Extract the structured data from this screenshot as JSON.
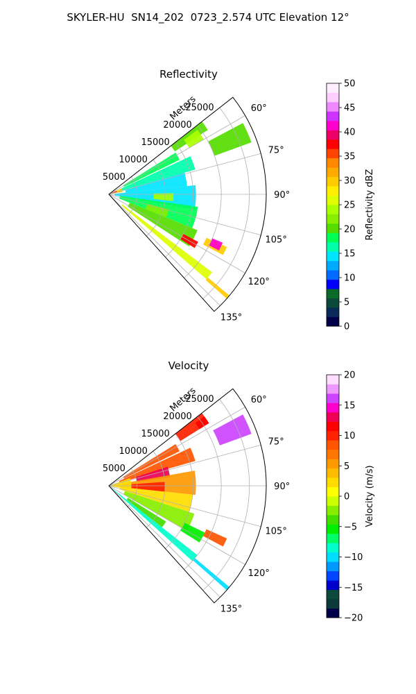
{
  "figure": {
    "suptitle": "SKYLER-HU  SN14_202  0723_2.574 UTC Elevation 12°"
  },
  "chart_data": [
    {
      "type": "heatmap",
      "projection": "polar",
      "title": "Reflectivity",
      "radial_axis_label": "Meters",
      "radial_ticks": [
        5000,
        10000,
        15000,
        20000,
        25000
      ],
      "radial_tick_labels": [
        "5000",
        "10000",
        "15000",
        "20000",
        "25000"
      ],
      "r_range": [
        0,
        28000
      ],
      "azimuth_range_deg": [
        52,
        138
      ],
      "azimuth_ticks": [
        60,
        75,
        90,
        105,
        120,
        135
      ],
      "azimuth_tick_labels": [
        "60°",
        "75°",
        "90°",
        "105°",
        "120°",
        "135°"
      ],
      "grid": true,
      "colorbar": {
        "label": "Reflectivity dBZ",
        "vmin": 0,
        "vmax": 50,
        "ticks": [
          0,
          5,
          10,
          15,
          20,
          25,
          30,
          35,
          40,
          45,
          50
        ],
        "tick_labels": [
          "0",
          "5",
          "10",
          "15",
          "20",
          "25",
          "30",
          "35",
          "40",
          "45",
          "50"
        ],
        "colormap": [
          "#00004a",
          "#0a2a5a",
          "#0b4a3a",
          "#0a6a2a",
          "#0000ff",
          "#006bff",
          "#00aaff",
          "#00e5ff",
          "#00ffaa",
          "#00ff55",
          "#55dd00",
          "#88ee00",
          "#aaff00",
          "#ddff00",
          "#ffee00",
          "#ffcc00",
          "#ffaa00",
          "#ff8800",
          "#ff4400",
          "#ff0000",
          "#ee0066",
          "#ff00cc",
          "#cc33ff",
          "#ee88ff",
          "#ffccff",
          "#ffeeff"
        ]
      },
      "echoes": [
        {
          "az": [
            52,
            57
          ],
          "r": [
            14000,
            21000
          ],
          "value": 20
        },
        {
          "az": [
            54,
            60
          ],
          "r": [
            16500,
            19500
          ],
          "value": 24
        },
        {
          "az": [
            58,
            64
          ],
          "r": [
            3000,
            14000
          ],
          "value": 18
        },
        {
          "az": [
            62,
            70
          ],
          "r": [
            20000,
            27000
          ],
          "value": 20
        },
        {
          "az": [
            65,
            74
          ],
          "r": [
            2000,
            16000
          ],
          "value": 16
        },
        {
          "az": [
            74,
            84
          ],
          "r": [
            3000,
            14000
          ],
          "value": 14
        },
        {
          "az": [
            84,
            100
          ],
          "r": [
            1000,
            15500
          ],
          "value": 15
        },
        {
          "az": [
            89,
            96
          ],
          "r": [
            8000,
            11500
          ],
          "value": 24
        },
        {
          "az": [
            98,
            112
          ],
          "r": [
            2000,
            16000
          ],
          "value": 18
        },
        {
          "az": [
            104,
            112
          ],
          "r": [
            7000,
            11000
          ],
          "value": 22
        },
        {
          "az": [
            112,
            123
          ],
          "r": [
            4000,
            17000
          ],
          "value": 20
        },
        {
          "az": [
            118,
            122
          ],
          "r": [
            15000,
            18000
          ],
          "value": 38
        },
        {
          "az": [
            114,
            118
          ],
          "r": [
            19000,
            23000
          ],
          "value": 30
        },
        {
          "az": [
            113,
            117
          ],
          "r": [
            20000,
            22000
          ],
          "value": 42
        },
        {
          "az": [
            127,
            131
          ],
          "r": [
            3000,
            23000
          ],
          "value": 26
        },
        {
          "az": [
            130,
            131.5
          ],
          "r": [
            23000,
            28000
          ],
          "value": 30
        },
        {
          "az": [
            65,
            80
          ],
          "r": [
            0,
            2500
          ],
          "value": 30
        },
        {
          "az": [
            66,
            72
          ],
          "r": [
            0,
            1500
          ],
          "value": 38
        }
      ]
    },
    {
      "type": "heatmap",
      "projection": "polar",
      "title": "Velocity",
      "radial_axis_label": "Meters",
      "radial_ticks": [
        5000,
        10000,
        15000,
        20000,
        25000
      ],
      "radial_tick_labels": [
        "5000",
        "10000",
        "15000",
        "20000",
        "25000"
      ],
      "r_range": [
        0,
        28000
      ],
      "azimuth_range_deg": [
        52,
        138
      ],
      "azimuth_ticks": [
        60,
        75,
        90,
        105,
        120,
        135
      ],
      "azimuth_tick_labels": [
        "60°",
        "75°",
        "90°",
        "105°",
        "120°",
        "135°"
      ],
      "grid": true,
      "colorbar": {
        "label": "Velocity (m/s)",
        "vmin": -20,
        "vmax": 20,
        "ticks": [
          -20,
          -15,
          -10,
          -5,
          0,
          5,
          10,
          15,
          20
        ],
        "tick_labels": [
          "−20",
          "−15",
          "−10",
          "−5",
          "0",
          "5",
          "10",
          "15",
          "20"
        ],
        "colormap": [
          "#00004a",
          "#0a3a3a",
          "#0b4a3a",
          "#0000cc",
          "#0044ff",
          "#0099ff",
          "#00ddff",
          "#00ffcc",
          "#00ff66",
          "#00ee00",
          "#44dd00",
          "#88ee00",
          "#ccff00",
          "#ffff00",
          "#ffdd00",
          "#ffbb00",
          "#ff9900",
          "#ff7700",
          "#ff5500",
          "#ff2200",
          "#ff0000",
          "#ee0055",
          "#ff00cc",
          "#cc44ff",
          "#ee99ff",
          "#ffddff"
        ]
      },
      "echoes": [
        {
          "az": [
            52,
            58
          ],
          "r": [
            15000,
            21000
          ],
          "value": 10
        },
        {
          "az": [
            54,
            58
          ],
          "r": [
            19000,
            21000
          ],
          "value": 12
        },
        {
          "az": [
            58,
            64
          ],
          "r": [
            3000,
            14000
          ],
          "value": 9
        },
        {
          "az": [
            62,
            70
          ],
          "r": [
            21000,
            27000
          ],
          "value": 16
        },
        {
          "az": [
            65,
            74
          ],
          "r": [
            2000,
            16000
          ],
          "value": 8
        },
        {
          "az": [
            72,
            82
          ],
          "r": [
            5000,
            11000
          ],
          "value": 13
        },
        {
          "az": [
            80,
            96
          ],
          "r": [
            1000,
            15500
          ],
          "value": 6
        },
        {
          "az": [
            86,
            96
          ],
          "r": [
            4000,
            10000
          ],
          "value": 10
        },
        {
          "az": [
            96,
            108
          ],
          "r": [
            2000,
            15000
          ],
          "value": 2
        },
        {
          "az": [
            108,
            120
          ],
          "r": [
            3000,
            16000
          ],
          "value": -2
        },
        {
          "az": [
            116,
            122
          ],
          "r": [
            15000,
            19000
          ],
          "value": -6
        },
        {
          "az": [
            114,
            118
          ],
          "r": [
            19000,
            23000
          ],
          "value": 8
        },
        {
          "az": [
            122,
            128
          ],
          "r": [
            4000,
            12000
          ],
          "value": -4
        },
        {
          "az": [
            130,
            131.5
          ],
          "r": [
            20000,
            28000
          ],
          "value": -10
        },
        {
          "az": [
            128,
            132
          ],
          "r": [
            0,
            20000
          ],
          "value": -8
        },
        {
          "az": [
            70,
            100
          ],
          "r": [
            0,
            4000
          ],
          "value": 3
        }
      ]
    }
  ]
}
